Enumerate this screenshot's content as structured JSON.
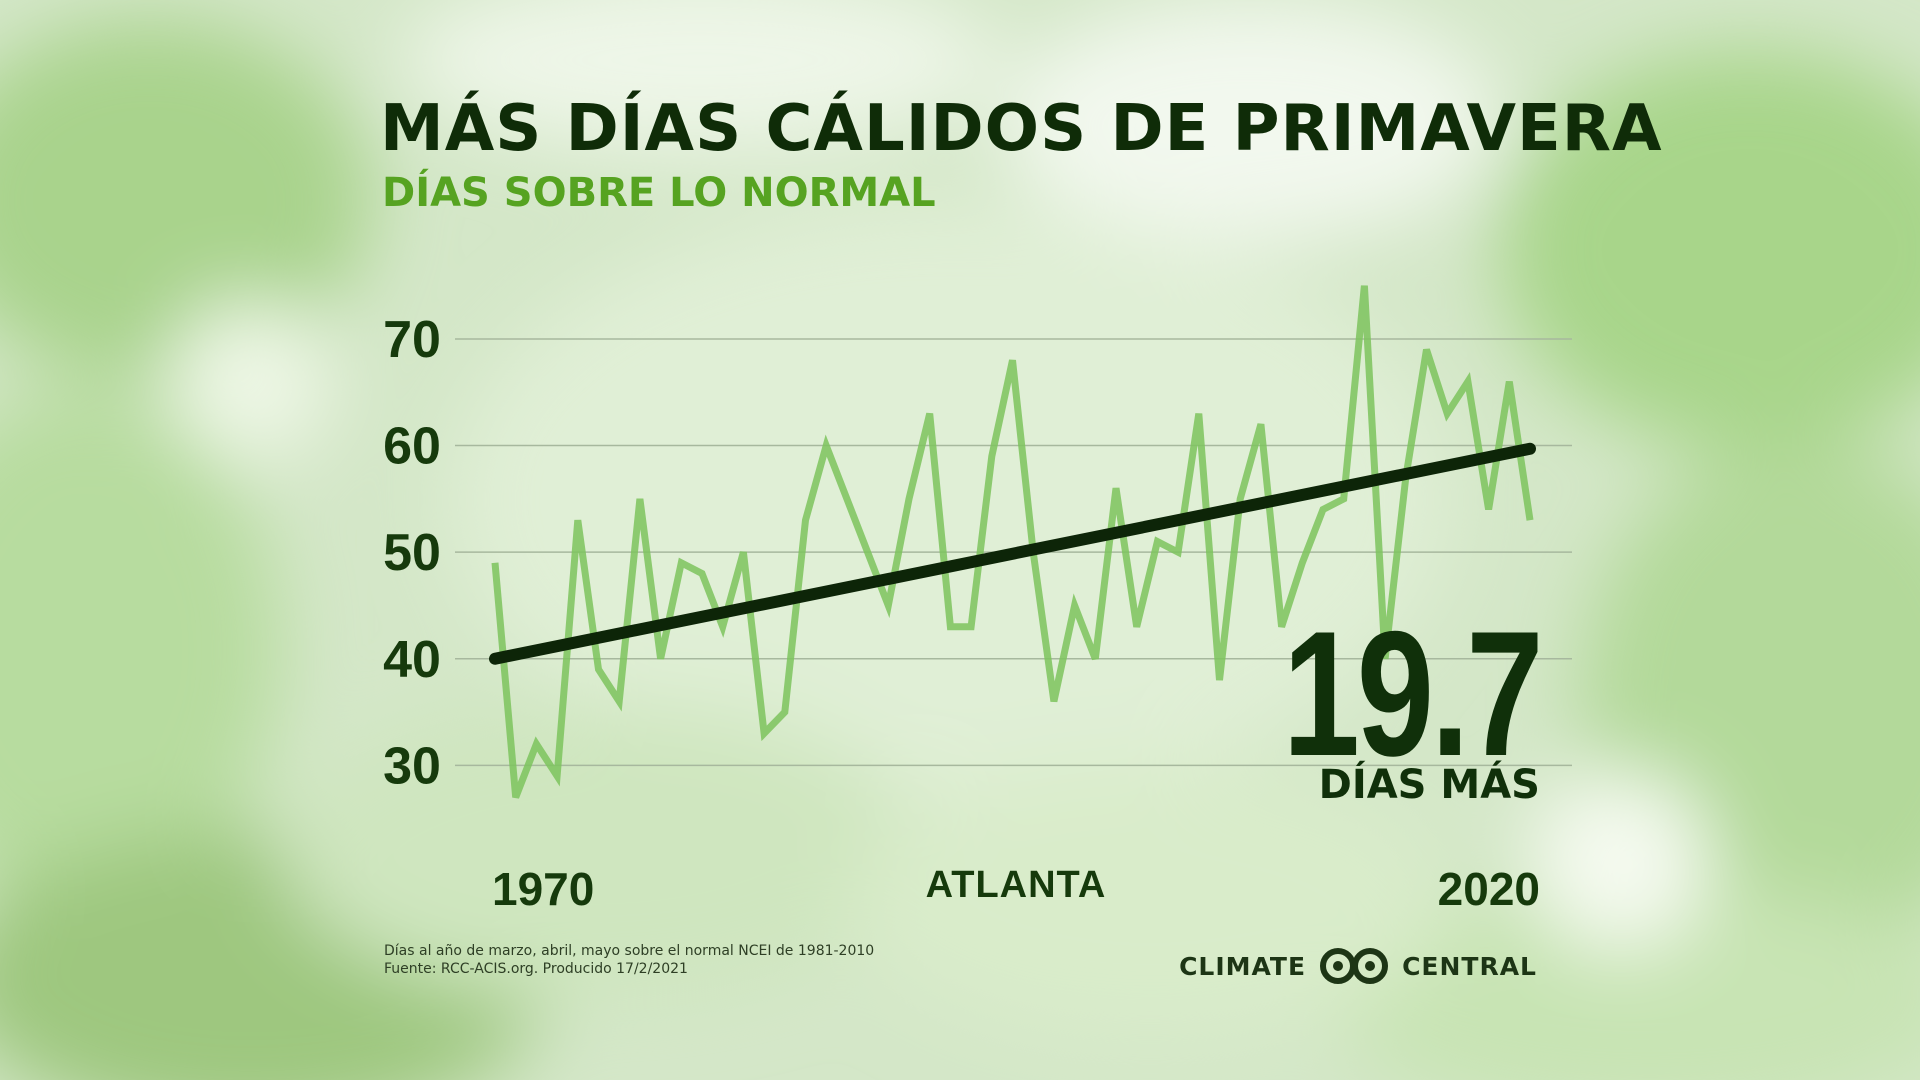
{
  "header": {
    "title": "MÁS DÍAS CÁLIDOS DE PRIMAVERA",
    "subtitle": "DÍAS SOBRE LO NORMAL"
  },
  "callout": {
    "value": "19.7",
    "label": "DÍAS MÁS"
  },
  "footnote": {
    "line1": "Días al año de marzo, abril, mayo sobre el normal NCEI de 1981-2010",
    "line2": "Fuente: RCC-ACIS.org. Producido 17/2/2021"
  },
  "logo": {
    "left_text": "CLIMATE",
    "right_text": "CENTRAL"
  },
  "colors": {
    "title": "#0f2c08",
    "subtitle": "#56a321",
    "series": "#7cc35d",
    "trend": "#0d2508",
    "gridline": "#a7b89e"
  },
  "chart_data": {
    "type": "line",
    "title": "MÁS DÍAS CÁLIDOS DE PRIMAVERA",
    "subtitle": "DÍAS SOBRE LO NORMAL",
    "location_label": "ATLANTA",
    "xlabel": "",
    "ylabel": "",
    "x_tick_labels": [
      "1970",
      "2020"
    ],
    "y_ticks": [
      30,
      40,
      50,
      60,
      70
    ],
    "ylim": [
      26,
      76
    ],
    "xlim": [
      1970,
      2020
    ],
    "grid": true,
    "series": [
      {
        "name": "",
        "x": [
          1970,
          1971,
          1972,
          1973,
          1974,
          1975,
          1976,
          1977,
          1978,
          1979,
          1980,
          1981,
          1982,
          1983,
          1984,
          1985,
          1986,
          1987,
          1988,
          1989,
          1990,
          1991,
          1992,
          1993,
          1994,
          1995,
          1996,
          1997,
          1998,
          1999,
          2000,
          2001,
          2002,
          2003,
          2004,
          2005,
          2006,
          2007,
          2008,
          2009,
          2010,
          2011,
          2012,
          2013,
          2014,
          2015,
          2016,
          2017,
          2018,
          2019,
          2020
        ],
        "values": [
          49,
          27,
          32,
          29,
          53,
          39,
          36,
          55,
          40,
          49,
          48,
          43,
          50,
          33,
          35,
          53,
          60,
          55,
          50,
          45,
          55,
          63,
          43,
          43,
          59,
          68,
          50,
          36,
          45,
          40,
          56,
          43,
          51,
          50,
          63,
          38,
          55,
          62,
          43,
          49,
          54,
          55,
          75,
          40,
          57,
          69,
          63,
          66,
          54,
          66,
          53
        ]
      },
      {
        "name": "trend",
        "x": [
          1970,
          2020
        ],
        "values": [
          40.0,
          59.7
        ]
      }
    ],
    "annotation": {
      "value": "19.7",
      "label": "DÍAS MÁS"
    }
  }
}
